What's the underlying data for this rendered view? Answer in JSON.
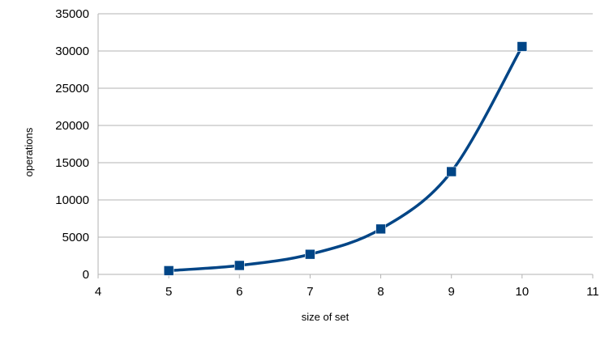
{
  "chart_data": {
    "type": "line",
    "xlabel": "size of set",
    "ylabel": "operations",
    "xlim": [
      4,
      11
    ],
    "ylim": [
      0,
      35000
    ],
    "x_ticks": [
      4,
      5,
      6,
      7,
      8,
      9,
      10,
      11
    ],
    "y_ticks": [
      0,
      5000,
      10000,
      15000,
      20000,
      25000,
      30000,
      35000
    ],
    "grid": "horizontal",
    "legend": "none",
    "smoothed": true,
    "marker": "square",
    "series": [
      {
        "color": "#004586",
        "x": [
          5,
          6,
          7,
          8,
          9,
          10
        ],
        "values": [
          500,
          1200,
          2700,
          6100,
          13800,
          30600
        ]
      }
    ]
  }
}
